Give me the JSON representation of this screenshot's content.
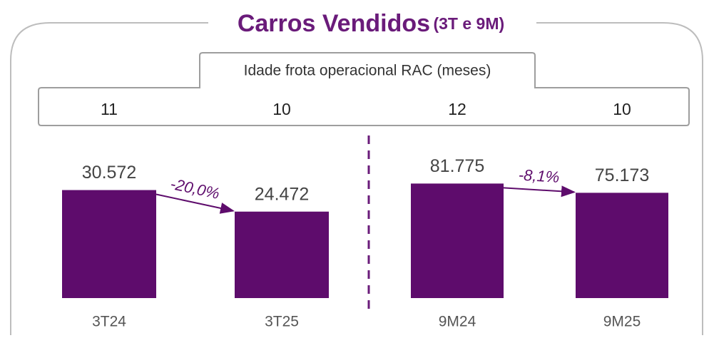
{
  "title": "Carros Vendidos",
  "subtitle": "(3T e 9M)",
  "fleet_age": {
    "label": "Idade frota operacional RAC (meses)",
    "values": [
      11,
      10,
      12,
      10
    ]
  },
  "chart_data": [
    {
      "type": "bar",
      "categories": [
        "3T24",
        "3T25"
      ],
      "values": [
        30572,
        24472
      ],
      "value_labels": [
        "30.572",
        "24.472"
      ],
      "color": "#5e0c6c",
      "ylim": [
        0,
        44000
      ],
      "annotation": "-20,0%"
    },
    {
      "type": "bar",
      "categories": [
        "9M24",
        "9M25"
      ],
      "values": [
        81775,
        75173
      ],
      "value_labels": [
        "81.775",
        "75.173"
      ],
      "color": "#5e0c6c",
      "ylim": [
        0,
        111000
      ],
      "annotation": "-8,1%"
    }
  ]
}
